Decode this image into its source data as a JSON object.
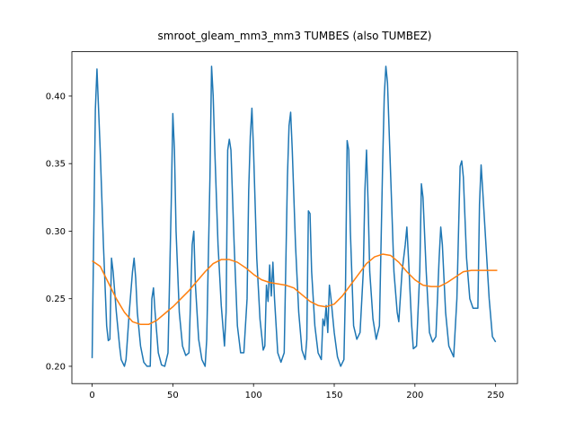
{
  "chart_data": {
    "type": "line",
    "title": "smroot_gleam_mm3_mm3 TUMBES (also TUMBEZ)",
    "xlim": [
      -12.55,
      263.55
    ],
    "xticks": [
      0,
      50,
      100,
      150,
      200,
      250
    ],
    "ylim": [
      0.1872,
      0.4328
    ],
    "yticks": [
      {
        "value": 0.2,
        "label": "0.20"
      },
      {
        "value": 0.25,
        "label": "0.25"
      },
      {
        "value": 0.3,
        "label": "0.30"
      },
      {
        "value": 0.35,
        "label": "0.35"
      },
      {
        "value": 0.4,
        "label": "0.40"
      }
    ],
    "series": [
      {
        "color": "#1f77b4",
        "x": [
          0,
          2,
          3,
          5,
          7,
          9,
          10,
          11,
          12,
          13,
          15,
          17,
          18,
          20,
          21,
          23,
          25,
          26,
          27,
          28,
          30,
          32,
          34,
          36,
          37,
          38,
          39,
          41,
          43,
          45,
          47,
          49,
          50,
          51,
          52,
          54,
          56,
          58,
          60,
          61,
          62,
          63,
          64,
          66,
          68,
          70,
          71,
          73,
          74,
          75,
          76,
          78,
          80,
          82,
          83,
          84,
          85,
          86,
          88,
          90,
          92,
          94,
          96,
          97,
          98,
          99,
          100,
          102,
          104,
          106,
          107,
          108,
          109,
          110,
          111,
          112,
          113,
          115,
          117,
          119,
          121,
          122,
          123,
          124,
          126,
          128,
          130,
          132,
          133,
          134,
          135,
          136,
          138,
          140,
          142,
          143,
          144,
          145,
          146,
          147,
          148,
          150,
          152,
          154,
          156,
          157,
          158,
          159,
          160,
          162,
          164,
          166,
          168,
          169,
          170,
          171,
          172,
          174,
          176,
          178,
          180,
          181,
          182,
          183,
          185,
          187,
          189,
          190,
          192,
          194,
          195,
          196,
          198,
          199,
          201,
          203,
          204,
          205,
          207,
          209,
          211,
          213,
          215,
          216,
          217,
          219,
          221,
          224,
          226,
          228,
          229,
          230,
          232,
          234,
          236,
          239,
          240,
          241,
          242,
          244,
          246,
          248,
          250
        ],
        "values": [
          0.206,
          0.39,
          0.42,
          0.36,
          0.29,
          0.23,
          0.219,
          0.22,
          0.28,
          0.27,
          0.24,
          0.215,
          0.205,
          0.2,
          0.205,
          0.24,
          0.27,
          0.28,
          0.265,
          0.24,
          0.215,
          0.203,
          0.2,
          0.2,
          0.25,
          0.258,
          0.24,
          0.21,
          0.201,
          0.2,
          0.21,
          0.32,
          0.387,
          0.36,
          0.3,
          0.24,
          0.215,
          0.208,
          0.21,
          0.25,
          0.29,
          0.3,
          0.26,
          0.22,
          0.205,
          0.2,
          0.22,
          0.34,
          0.422,
          0.4,
          0.36,
          0.29,
          0.245,
          0.215,
          0.24,
          0.36,
          0.368,
          0.36,
          0.29,
          0.23,
          0.21,
          0.21,
          0.25,
          0.33,
          0.37,
          0.391,
          0.36,
          0.28,
          0.235,
          0.212,
          0.215,
          0.26,
          0.248,
          0.275,
          0.252,
          0.277,
          0.25,
          0.21,
          0.203,
          0.21,
          0.34,
          0.378,
          0.388,
          0.36,
          0.29,
          0.24,
          0.212,
          0.205,
          0.22,
          0.315,
          0.313,
          0.27,
          0.23,
          0.21,
          0.205,
          0.235,
          0.23,
          0.245,
          0.225,
          0.26,
          0.25,
          0.225,
          0.207,
          0.2,
          0.205,
          0.26,
          0.367,
          0.36,
          0.3,
          0.23,
          0.22,
          0.225,
          0.27,
          0.33,
          0.36,
          0.32,
          0.27,
          0.235,
          0.22,
          0.23,
          0.35,
          0.4,
          0.422,
          0.41,
          0.34,
          0.27,
          0.24,
          0.233,
          0.27,
          0.29,
          0.303,
          0.28,
          0.23,
          0.213,
          0.215,
          0.27,
          0.335,
          0.325,
          0.27,
          0.225,
          0.218,
          0.222,
          0.28,
          0.303,
          0.29,
          0.24,
          0.215,
          0.207,
          0.25,
          0.348,
          0.352,
          0.34,
          0.28,
          0.25,
          0.243,
          0.243,
          0.32,
          0.349,
          0.33,
          0.29,
          0.25,
          0.222,
          0.218
        ]
      },
      {
        "color": "#ff7f0e",
        "x": [
          0,
          5,
          10,
          15,
          20,
          25,
          30,
          35,
          40,
          45,
          50,
          55,
          60,
          65,
          70,
          75,
          80,
          85,
          90,
          95,
          100,
          105,
          110,
          115,
          120,
          125,
          130,
          135,
          140,
          145,
          150,
          155,
          160,
          165,
          170,
          175,
          180,
          185,
          190,
          195,
          200,
          205,
          210,
          215,
          220,
          225,
          230,
          235,
          240,
          245,
          251
        ],
        "values": [
          0.278,
          0.274,
          0.262,
          0.25,
          0.24,
          0.233,
          0.231,
          0.231,
          0.234,
          0.239,
          0.244,
          0.25,
          0.256,
          0.263,
          0.27,
          0.276,
          0.279,
          0.279,
          0.277,
          0.273,
          0.268,
          0.264,
          0.262,
          0.261,
          0.26,
          0.258,
          0.253,
          0.248,
          0.245,
          0.244,
          0.246,
          0.252,
          0.26,
          0.268,
          0.276,
          0.281,
          0.283,
          0.282,
          0.277,
          0.27,
          0.264,
          0.26,
          0.259,
          0.259,
          0.262,
          0.266,
          0.27,
          0.271,
          0.271,
          0.271,
          0.271
        ]
      }
    ]
  }
}
